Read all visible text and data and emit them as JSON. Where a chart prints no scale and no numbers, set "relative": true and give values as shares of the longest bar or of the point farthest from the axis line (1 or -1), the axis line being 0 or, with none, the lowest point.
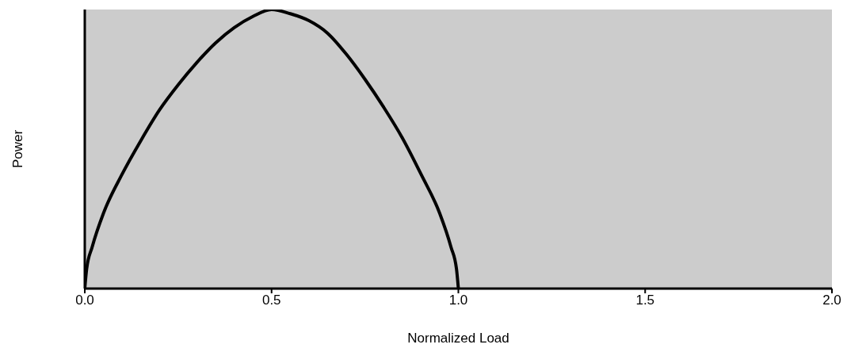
{
  "chart_data": {
    "type": "line",
    "xlabel": "Normalized Load",
    "ylabel": "Power",
    "relative": true,
    "xlim": [
      0,
      2
    ],
    "xticks": [
      {
        "value": 0,
        "label": "0.0"
      },
      {
        "value": 0.5,
        "label": "0.5"
      },
      {
        "value": 1,
        "label": "1.0"
      },
      {
        "value": 1.5,
        "label": "1.5"
      },
      {
        "value": 2,
        "label": "2.0"
      }
    ],
    "marker": "none",
    "line_style": "solid",
    "grid": false,
    "x": [
      0,
      0.005,
      0.02,
      0.05,
      0.1,
      0.15,
      0.2,
      0.25,
      0.3,
      0.35,
      0.4,
      0.45,
      0.5,
      0.55,
      0.6,
      0.65,
      0.7,
      0.75,
      0.8,
      0.85,
      0.9,
      0.95,
      0.98,
      0.995,
      1
    ],
    "series": [
      {
        "color": "#000000",
        "values": [
          0,
          0.07,
          0.15,
          0.27,
          0.41,
          0.53,
          0.64,
          0.73,
          0.81,
          0.88,
          0.935,
          0.975,
          1,
          0.985,
          0.96,
          0.915,
          0.84,
          0.75,
          0.65,
          0.54,
          0.41,
          0.27,
          0.15,
          0.07,
          0
        ]
      }
    ]
  }
}
